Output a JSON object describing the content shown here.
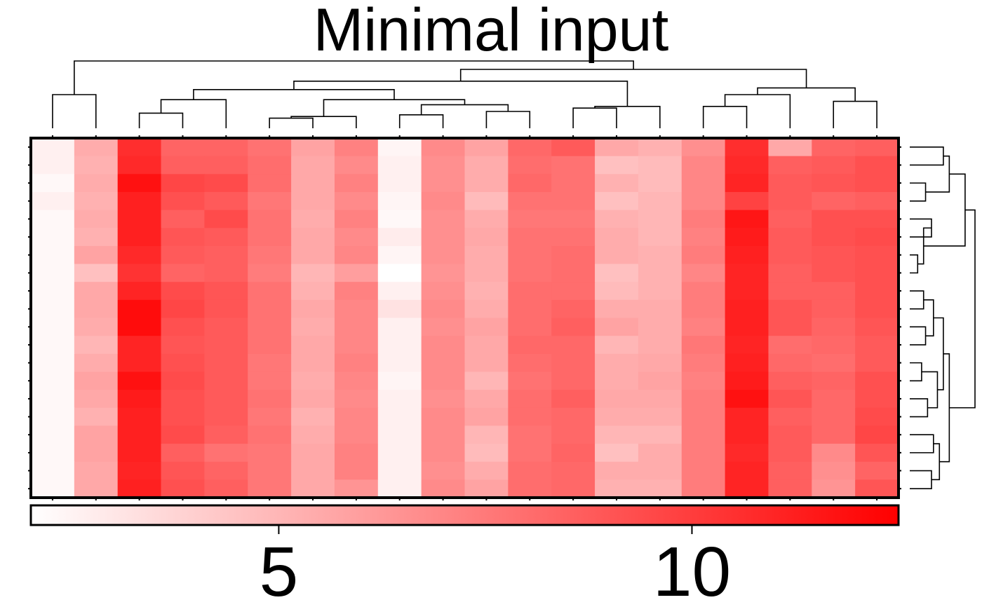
{
  "chart_data": {
    "type": "heatmap",
    "title": "Minimal input",
    "n_rows": 20,
    "n_cols": 20,
    "values": [
      [
        2.6,
        5.4,
        10.6,
        8.4,
        8.4,
        7.8,
        5.8,
        7.2,
        2.4,
        6.8,
        5.8,
        8.2,
        8.8,
        5.6,
        5.2,
        6.6,
        10.6,
        5.6,
        8.4,
        8.6
      ],
      [
        2.6,
        5.2,
        10.8,
        8.6,
        8.6,
        8.0,
        5.6,
        6.8,
        2.6,
        6.6,
        5.4,
        8.0,
        7.8,
        4.6,
        4.8,
        7.0,
        10.8,
        8.6,
        8.8,
        9.2
      ],
      [
        2.3,
        5.4,
        11.8,
        9.6,
        9.4,
        8.0,
        5.6,
        7.2,
        2.6,
        6.6,
        5.4,
        8.2,
        7.8,
        5.2,
        4.8,
        7.0,
        11.0,
        8.8,
        9.0,
        9.2
      ],
      [
        2.6,
        5.2,
        11.2,
        9.2,
        8.8,
        7.6,
        5.6,
        6.8,
        2.4,
        6.8,
        4.8,
        7.8,
        7.8,
        4.6,
        5.0,
        7.0,
        9.8,
        8.8,
        8.4,
        8.6
      ],
      [
        2.3,
        5.4,
        11.2,
        8.6,
        9.4,
        7.8,
        5.4,
        7.2,
        2.3,
        6.6,
        5.4,
        7.6,
        7.6,
        5.2,
        5.0,
        7.4,
        11.6,
        8.6,
        9.2,
        9.2
      ],
      [
        2.3,
        5.2,
        11.2,
        9.0,
        8.8,
        7.8,
        5.6,
        6.8,
        2.8,
        6.6,
        5.6,
        7.8,
        7.8,
        5.4,
        5.0,
        7.2,
        11.4,
        8.8,
        9.2,
        9.4
      ],
      [
        2.3,
        5.8,
        10.8,
        8.8,
        8.6,
        7.6,
        5.6,
        7.0,
        2.4,
        6.6,
        5.4,
        7.8,
        8.0,
        5.4,
        5.2,
        7.4,
        11.2,
        8.8,
        9.0,
        9.2
      ],
      [
        2.3,
        4.6,
        10.4,
        8.4,
        8.6,
        7.4,
        5.0,
        6.0,
        2.0,
        6.4,
        5.4,
        7.8,
        8.0,
        4.6,
        5.2,
        7.0,
        11.0,
        8.6,
        9.0,
        9.2
      ],
      [
        2.3,
        5.6,
        11.0,
        9.4,
        9.0,
        7.8,
        5.2,
        7.2,
        2.6,
        6.6,
        5.2,
        8.0,
        8.0,
        4.8,
        5.2,
        7.4,
        11.0,
        8.6,
        8.6,
        9.2
      ],
      [
        2.3,
        5.6,
        12.0,
        9.6,
        9.0,
        7.8,
        5.6,
        7.0,
        3.2,
        6.8,
        5.4,
        8.0,
        8.4,
        5.4,
        5.4,
        7.4,
        11.2,
        9.0,
        8.6,
        9.2
      ],
      [
        2.3,
        5.4,
        12.0,
        9.2,
        8.8,
        7.8,
        5.4,
        7.0,
        2.6,
        6.6,
        5.8,
        8.0,
        8.6,
        5.8,
        5.4,
        7.2,
        11.2,
        9.0,
        8.4,
        9.0
      ],
      [
        2.3,
        5.0,
        11.0,
        9.0,
        8.8,
        7.8,
        5.6,
        7.0,
        2.6,
        6.8,
        5.6,
        8.2,
        8.2,
        5.0,
        5.4,
        7.6,
        11.0,
        8.0,
        8.2,
        8.8
      ],
      [
        2.3,
        5.4,
        11.0,
        9.2,
        8.8,
        7.6,
        5.6,
        7.2,
        2.6,
        6.8,
        5.6,
        8.0,
        8.2,
        5.4,
        5.6,
        7.4,
        11.2,
        8.2,
        8.0,
        8.8
      ],
      [
        2.3,
        5.8,
        11.8,
        9.4,
        8.8,
        7.6,
        5.4,
        7.0,
        2.4,
        6.8,
        5.0,
        7.8,
        8.2,
        5.4,
        5.8,
        7.2,
        11.4,
        8.6,
        8.4,
        9.2
      ],
      [
        2.3,
        5.6,
        11.4,
        9.2,
        8.8,
        7.8,
        5.6,
        6.8,
        2.6,
        6.6,
        5.6,
        8.0,
        8.6,
        5.6,
        5.6,
        7.4,
        11.8,
        9.0,
        8.2,
        9.2
      ],
      [
        2.3,
        5.2,
        11.2,
        9.2,
        8.8,
        7.6,
        5.2,
        7.0,
        2.6,
        6.8,
        5.8,
        8.0,
        8.2,
        5.4,
        5.4,
        7.4,
        11.0,
        8.6,
        8.2,
        9.4
      ],
      [
        2.3,
        5.8,
        11.2,
        9.4,
        8.6,
        7.8,
        5.4,
        7.0,
        2.6,
        6.8,
        5.0,
        7.8,
        8.2,
        5.0,
        5.0,
        7.4,
        11.0,
        8.8,
        8.2,
        9.6
      ],
      [
        2.3,
        5.8,
        11.2,
        8.6,
        7.8,
        7.6,
        5.6,
        7.2,
        2.6,
        6.8,
        4.8,
        7.8,
        8.4,
        4.6,
        5.4,
        7.4,
        10.8,
        8.8,
        6.8,
        9.0
      ],
      [
        2.3,
        5.6,
        11.0,
        9.0,
        8.4,
        7.6,
        5.6,
        7.2,
        2.6,
        6.6,
        5.4,
        8.0,
        8.2,
        5.4,
        5.4,
        7.4,
        11.0,
        8.6,
        6.6,
        8.4
      ],
      [
        2.3,
        5.6,
        11.2,
        9.2,
        8.6,
        7.6,
        5.6,
        6.4,
        2.6,
        6.8,
        5.8,
        8.0,
        8.2,
        5.2,
        5.2,
        7.4,
        11.0,
        8.6,
        6.4,
        9.0
      ]
    ],
    "color_scale": {
      "min": 2.0,
      "max": 12.5,
      "low_color": "#ffffff",
      "high_color": "#ff0000",
      "ticks": [
        5,
        10
      ],
      "tick_labels": [
        "5",
        "10"
      ]
    },
    "grid": false,
    "legend": "bottom",
    "column_dendrogram": {
      "merges": [
        [
          0,
          1,
          1.0
        ],
        [
          2,
          3,
          0.45
        ],
        [
          -2,
          4,
          0.85
        ],
        [
          5,
          6,
          0.3
        ],
        [
          -4,
          7,
          0.35
        ],
        [
          8,
          9,
          0.4
        ],
        [
          10,
          11,
          0.5
        ],
        [
          -6,
          -7,
          0.7
        ],
        [
          -5,
          -8,
          0.85
        ],
        [
          -3,
          -9,
          1.15
        ],
        [
          12,
          13,
          0.6
        ],
        [
          -11,
          14,
          0.65
        ],
        [
          -10,
          -12,
          1.4
        ],
        [
          15,
          16,
          0.65
        ],
        [
          -14,
          17,
          1.0
        ],
        [
          18,
          19,
          0.8
        ],
        [
          -15,
          -16,
          1.2
        ],
        [
          -13,
          -17,
          1.75
        ],
        [
          -1,
          -18,
          2.0
        ]
      ]
    },
    "row_dendrogram": {
      "merges": [
        [
          0,
          1,
          0.85
        ],
        [
          2,
          3,
          0.4
        ],
        [
          -1,
          -2,
          1.0
        ],
        [
          4,
          5,
          0.55
        ],
        [
          6,
          7,
          0.2
        ],
        [
          -4,
          -5,
          0.35
        ],
        [
          -3,
          -6,
          1.4
        ],
        [
          8,
          9,
          0.35
        ],
        [
          10,
          11,
          0.4
        ],
        [
          -8,
          -9,
          0.6
        ],
        [
          12,
          13,
          0.3
        ],
        [
          14,
          15,
          0.45
        ],
        [
          -11,
          -12,
          0.7
        ],
        [
          -10,
          -13,
          0.85
        ],
        [
          16,
          17,
          0.6
        ],
        [
          18,
          19,
          0.55
        ],
        [
          -15,
          -16,
          0.75
        ],
        [
          -14,
          -17,
          1.0
        ],
        [
          -7,
          -18,
          1.65
        ]
      ]
    }
  }
}
